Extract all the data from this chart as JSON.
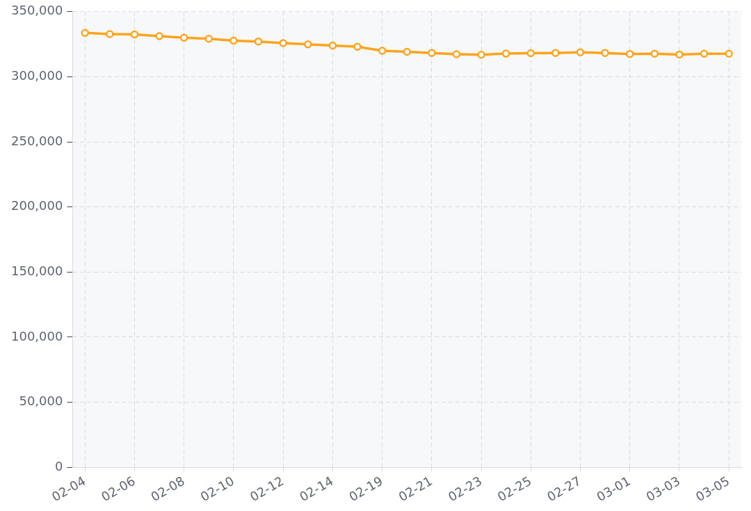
{
  "chart_data": {
    "type": "line",
    "categories": [
      "02-04",
      null,
      "02-06",
      null,
      "02-08",
      null,
      "02-10",
      null,
      "02-12",
      null,
      "02-14",
      null,
      "02-19",
      null,
      "02-21",
      null,
      "02-23",
      null,
      "02-25",
      null,
      "02-27",
      null,
      "03-01",
      null,
      "03-03",
      null,
      "03-05"
    ],
    "series": [
      {
        "color": "#ffa31a",
        "values": [
          333700,
          332800,
          332500,
          331200,
          330000,
          329200,
          327700,
          327100,
          325900,
          324900,
          324000,
          323100,
          320000,
          319200,
          318300,
          317300,
          316900,
          317800,
          318100,
          318300,
          318800,
          318300,
          317500,
          317700,
          317100,
          317700,
          317700
        ]
      }
    ],
    "ylim": [
      0,
      350000
    ],
    "yticks": [
      {
        "value": 0,
        "label": "0"
      },
      {
        "value": 50000,
        "label": "50,000"
      },
      {
        "value": 100000,
        "label": "100,000"
      },
      {
        "value": 150000,
        "label": "150,000"
      },
      {
        "value": 200000,
        "label": "200,000"
      },
      {
        "value": 250000,
        "label": "250,000"
      },
      {
        "value": 300000,
        "label": "300,000"
      },
      {
        "value": 350000,
        "label": "350,000"
      }
    ],
    "grid": true,
    "marker": "circle",
    "line_style": "solid"
  }
}
